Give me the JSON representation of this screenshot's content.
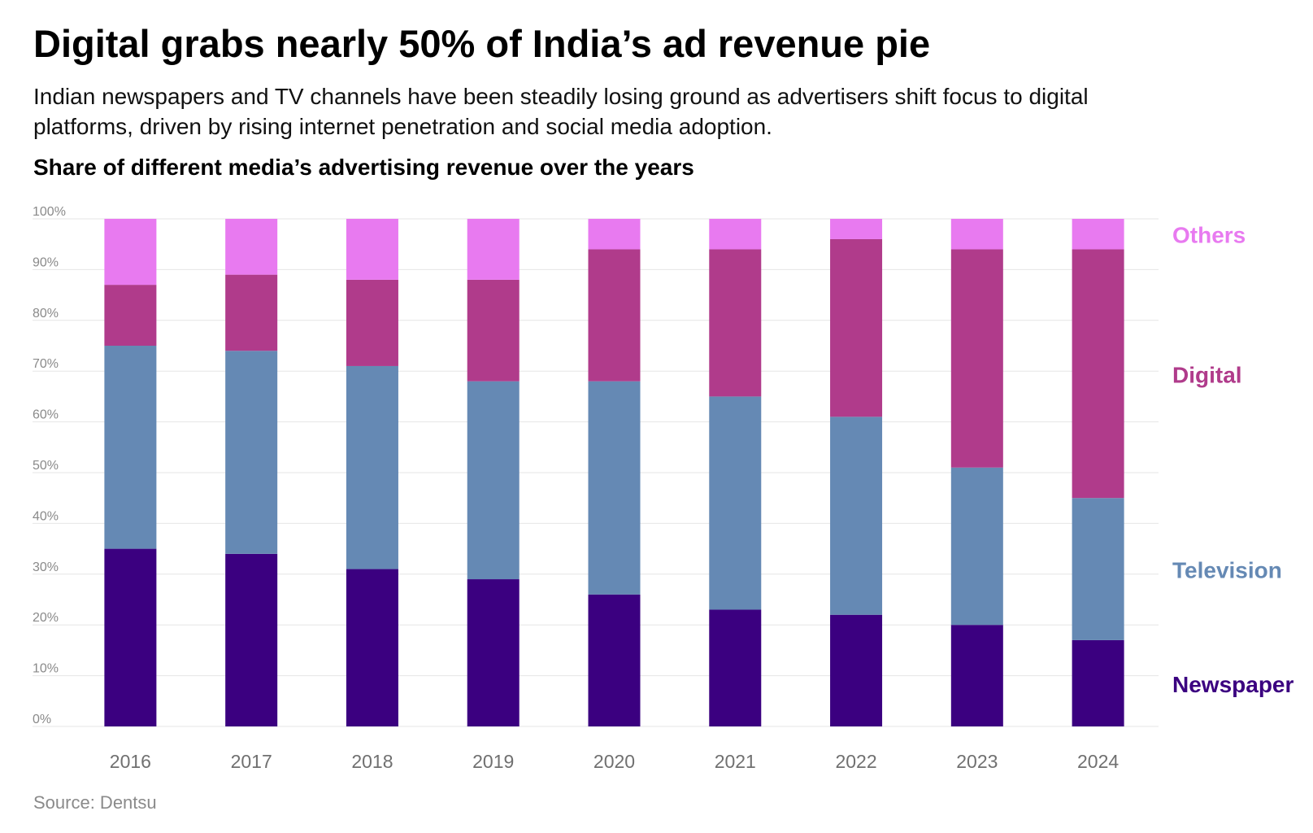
{
  "header": {
    "title": "Digital grabs nearly 50% of India’s ad revenue pie",
    "subtitle": "Indian newspapers and TV channels have been steadily losing ground as advertisers shift focus to digital platforms, driven by rising internet penetration and social media adoption."
  },
  "chart_data": {
    "type": "bar",
    "stacked": true,
    "title": "Share of different media’s advertising revenue over the years",
    "xlabel": "",
    "ylabel": "",
    "ylim": [
      0,
      100
    ],
    "y_ticks": [
      "0%",
      "10%",
      "20%",
      "30%",
      "40%",
      "50%",
      "60%",
      "70%",
      "80%",
      "90%",
      "100%"
    ],
    "grid": true,
    "legend_placement": "right, aligned with each series segment",
    "categories": [
      "2016",
      "2017",
      "2018",
      "2019",
      "2020",
      "2021",
      "2022",
      "2023",
      "2024"
    ],
    "series": [
      {
        "name": "Newspaper",
        "color": "#3b0080",
        "values": [
          35,
          34,
          31,
          29,
          26,
          23,
          22,
          20,
          17
        ]
      },
      {
        "name": "Television",
        "color": "#6589b4",
        "values": [
          40,
          40,
          40,
          39,
          42,
          42,
          39,
          31,
          28
        ]
      },
      {
        "name": "Digital",
        "color": "#b03b8b",
        "values": [
          12,
          15,
          17,
          20,
          26,
          29,
          35,
          43,
          49
        ]
      },
      {
        "name": "Others",
        "color": "#e87af0",
        "values": [
          13,
          11,
          12,
          12,
          6,
          6,
          4,
          6,
          6
        ]
      }
    ]
  },
  "footer": {
    "source": "Source: Dentsu"
  }
}
